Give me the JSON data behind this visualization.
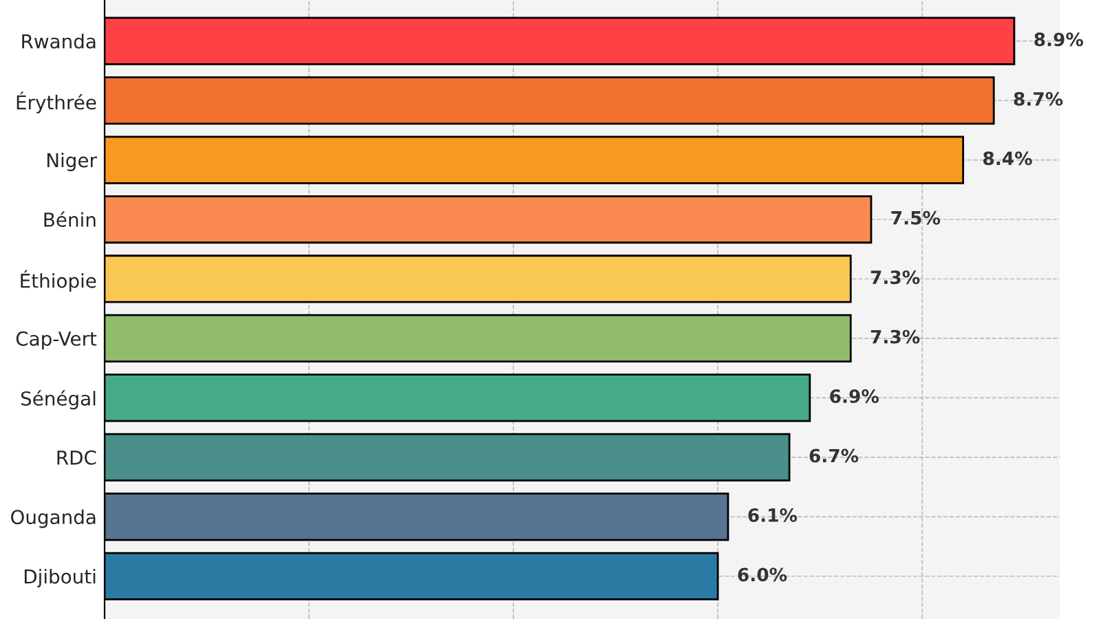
{
  "chart_data": {
    "type": "bar",
    "orientation": "horizontal",
    "categories": [
      "Rwanda",
      "Érythrée",
      "Niger",
      "Bénin",
      "Éthiopie",
      "Cap-Vert",
      "Sénégal",
      "RDC",
      "Ouganda",
      "Djibouti"
    ],
    "values": [
      8.9,
      8.7,
      8.4,
      7.5,
      7.3,
      7.3,
      6.9,
      6.7,
      6.1,
      6.0
    ],
    "colors": [
      "#fe4145",
      "#f1722f",
      "#f89a20",
      "#fb8a50",
      "#f9c853",
      "#90bc6b",
      "#45aa88",
      "#4a8f89",
      "#577492",
      "#2a7aa4"
    ],
    "value_labels": [
      "8.9%",
      "8.7%",
      "8.4%",
      "7.5%",
      "7.3%",
      "7.3%",
      "6.9%",
      "6.7%",
      "6.1%",
      "6.0%"
    ],
    "xlim": [
      0,
      9.345
    ],
    "xticks": [
      {
        "value": 0,
        "label": null
      },
      {
        "value": 2,
        "label": null
      },
      {
        "value": 4,
        "label": null
      },
      {
        "value": 6,
        "label": null
      },
      {
        "value": 8,
        "label": null
      }
    ],
    "tick_labels": "y",
    "grid": true
  }
}
